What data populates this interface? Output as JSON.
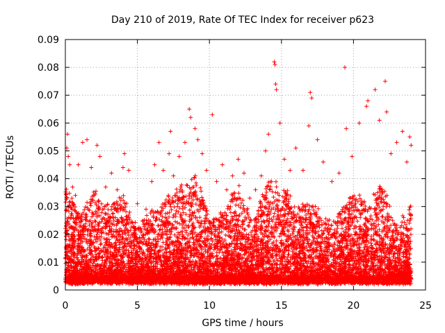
{
  "chart_data": {
    "type": "scatter",
    "title": "Day 210 of 2019, Rate Of TEC Index for receiver p623",
    "xlabel": "GPS time / hours",
    "ylabel": "ROTI / TECUs",
    "xlim": [
      0,
      25
    ],
    "ylim": [
      0,
      0.09
    ],
    "grid": true,
    "marker": "+",
    "color": "#ff0000",
    "x_ticks": [
      "0",
      "5",
      "10",
      "15",
      "20",
      "25"
    ],
    "y_ticks": [
      "0",
      "0.01",
      "0.02",
      "0.03",
      "0.04",
      "0.05",
      "0.06",
      "0.07",
      "0.08",
      "0.09"
    ],
    "series": [
      {
        "name": "ROTI",
        "points": [
          [
            0.05,
            0.023
          ],
          [
            0.1,
            0.051
          ],
          [
            0.15,
            0.056
          ],
          [
            0.2,
            0.048
          ],
          [
            0.3,
            0.045
          ],
          [
            0.5,
            0.037
          ],
          [
            0.7,
            0.034
          ],
          [
            0.9,
            0.045
          ],
          [
            1.2,
            0.053
          ],
          [
            1.5,
            0.054
          ],
          [
            1.8,
            0.044
          ],
          [
            2.2,
            0.052
          ],
          [
            2.4,
            0.048
          ],
          [
            2.8,
            0.037
          ],
          [
            3.2,
            0.042
          ],
          [
            3.6,
            0.036
          ],
          [
            4.0,
            0.044
          ],
          [
            4.1,
            0.049
          ],
          [
            4.4,
            0.043
          ],
          [
            5.0,
            0.031
          ],
          [
            5.6,
            0.029
          ],
          [
            6.0,
            0.039
          ],
          [
            6.2,
            0.045
          ],
          [
            6.5,
            0.053
          ],
          [
            6.8,
            0.043
          ],
          [
            7.2,
            0.049
          ],
          [
            7.3,
            0.057
          ],
          [
            7.5,
            0.041
          ],
          [
            7.9,
            0.048
          ],
          [
            8.3,
            0.053
          ],
          [
            8.6,
            0.065
          ],
          [
            8.7,
            0.062
          ],
          [
            9.0,
            0.058
          ],
          [
            9.2,
            0.054
          ],
          [
            9.5,
            0.049
          ],
          [
            9.8,
            0.043
          ],
          [
            10.2,
            0.063
          ],
          [
            10.5,
            0.039
          ],
          [
            10.9,
            0.045
          ],
          [
            11.2,
            0.036
          ],
          [
            11.6,
            0.041
          ],
          [
            12.0,
            0.047
          ],
          [
            12.4,
            0.042
          ],
          [
            12.8,
            0.033
          ],
          [
            13.2,
            0.036
          ],
          [
            13.6,
            0.041
          ],
          [
            13.9,
            0.05
          ],
          [
            14.1,
            0.056
          ],
          [
            14.5,
            0.082
          ],
          [
            14.55,
            0.081
          ],
          [
            14.6,
            0.074
          ],
          [
            14.65,
            0.072
          ],
          [
            14.9,
            0.06
          ],
          [
            15.2,
            0.047
          ],
          [
            15.6,
            0.043
          ],
          [
            16.0,
            0.051
          ],
          [
            16.5,
            0.043
          ],
          [
            16.9,
            0.059
          ],
          [
            17.0,
            0.071
          ],
          [
            17.1,
            0.069
          ],
          [
            17.5,
            0.054
          ],
          [
            17.9,
            0.046
          ],
          [
            18.5,
            0.039
          ],
          [
            19.0,
            0.042
          ],
          [
            19.4,
            0.08
          ],
          [
            19.5,
            0.058
          ],
          [
            19.9,
            0.048
          ],
          [
            20.4,
            0.06
          ],
          [
            20.9,
            0.066
          ],
          [
            21.0,
            0.068
          ],
          [
            21.5,
            0.072
          ],
          [
            21.8,
            0.061
          ],
          [
            22.2,
            0.075
          ],
          [
            22.3,
            0.064
          ],
          [
            22.6,
            0.049
          ],
          [
            23.0,
            0.053
          ],
          [
            23.4,
            0.057
          ],
          [
            23.7,
            0.046
          ],
          [
            23.9,
            0.055
          ],
          [
            24.0,
            0.052
          ]
        ],
        "envelope": {
          "hours": [
            0,
            1,
            2,
            3,
            4,
            5,
            6,
            7,
            8,
            9,
            10,
            11,
            12,
            13,
            14,
            15,
            16,
            17,
            18,
            19,
            20,
            21,
            22,
            23,
            24
          ],
          "typical_max": [
            0.036,
            0.027,
            0.034,
            0.029,
            0.033,
            0.021,
            0.027,
            0.031,
            0.036,
            0.04,
            0.025,
            0.027,
            0.037,
            0.022,
            0.039,
            0.037,
            0.029,
            0.031,
            0.024,
            0.027,
            0.033,
            0.03,
            0.038,
            0.021,
            0.029
          ],
          "baseline_min": 0.002
        }
      }
    ]
  }
}
